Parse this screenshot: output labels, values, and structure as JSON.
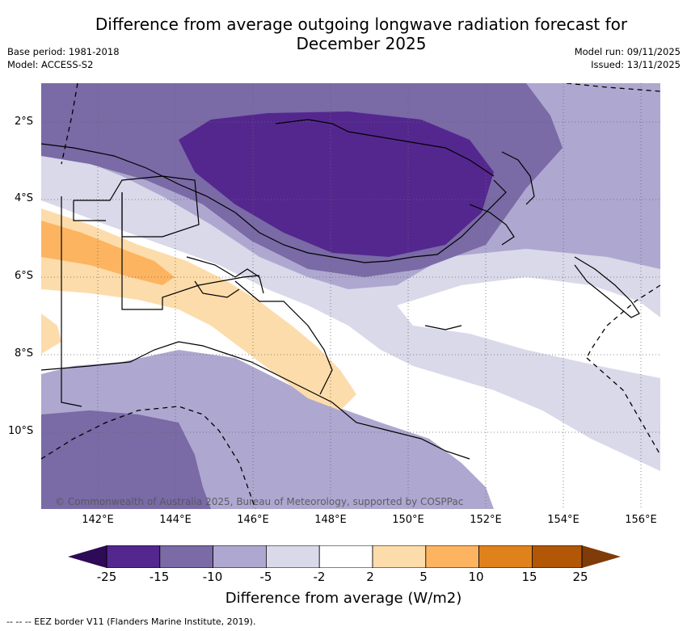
{
  "title_line1": "Difference from average outgoing longwave radiation forecast for",
  "title_line2": "December 2025",
  "meta": {
    "base_period": "Base period: 1981-2018",
    "model": "Model: ACCESS-S2",
    "model_run": "Model run: 09/11/2025",
    "issued": "Issued: 13/11/2025"
  },
  "lat_labels": [
    "2°S",
    "4°S",
    "6°S",
    "8°S",
    "10°S"
  ],
  "lon_labels": [
    "142°E",
    "144°E",
    "146°E",
    "148°E",
    "150°E",
    "152°E",
    "154°E",
    "156°E"
  ],
  "copyright": "© Commonwealth of Australia 2025, Bureau of Meteorology, supported by COSPPac",
  "colorbar": {
    "ticks": [
      "-25",
      "-15",
      "-10",
      "-5",
      "-2",
      "2",
      "5",
      "10",
      "15",
      "25"
    ],
    "colors": [
      "#2d0b56",
      "#54278f",
      "#7a6aa6",
      "#aea8d0",
      "#d9d9ea",
      "#ffffff",
      "#fddcab",
      "#fdb460",
      "#e0821c",
      "#b15706",
      "#7f3b08"
    ],
    "label": "Difference from average (W/m2)"
  },
  "footer": "--  --  -- EEZ border V11 (Flanders Marine Institute, 2019).",
  "icons": [
    "map-ocean",
    "map-coastline",
    "map-eez-border"
  ]
}
